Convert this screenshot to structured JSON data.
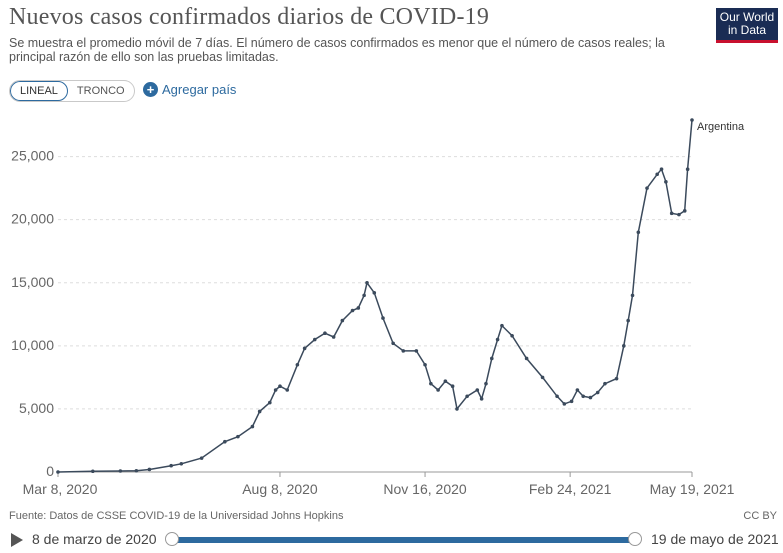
{
  "header": {
    "title": "Nuevos casos confirmados diarios de COVID-19",
    "subtitle": "Se muestra el promedio móvil de 7 días. El número de casos confirmados es menor que el número de casos reales; la principal razón de ello son las pruebas limitadas.",
    "logo_line1": "Our World",
    "logo_line2": "in Data"
  },
  "controls": {
    "scale_options": [
      "LINEAL",
      "TRONCO"
    ],
    "selected_scale": "LINEAL",
    "add_country_label": "Agregar país"
  },
  "footer": {
    "source": "Fuente: Datos de CSSE COVID-19 de la Universidad Johns Hopkins",
    "license": "CC BY"
  },
  "timeline": {
    "start_label": "8 de marzo de 2020",
    "end_label": "19 de mayo de 2021"
  },
  "colors": {
    "line": "#3b4a5c",
    "grid": "#dddddd",
    "accent": "#2d6a9f",
    "logo_bg": "#1a2c54",
    "logo_bar": "#c8102e"
  },
  "chart_data": {
    "type": "line",
    "series": [
      {
        "name": "Argentina",
        "points": [
          [
            "2020-03-08",
            0
          ],
          [
            "2020-04-01",
            60
          ],
          [
            "2020-04-20",
            80
          ],
          [
            "2020-05-01",
            100
          ],
          [
            "2020-05-10",
            200
          ],
          [
            "2020-05-25",
            500
          ],
          [
            "2020-06-01",
            650
          ],
          [
            "2020-06-15",
            1100
          ],
          [
            "2020-07-01",
            2400
          ],
          [
            "2020-07-10",
            2800
          ],
          [
            "2020-07-20",
            3600
          ],
          [
            "2020-07-25",
            4800
          ],
          [
            "2020-08-01",
            5500
          ],
          [
            "2020-08-05",
            6500
          ],
          [
            "2020-08-08",
            6800
          ],
          [
            "2020-08-13",
            6500
          ],
          [
            "2020-08-20",
            8500
          ],
          [
            "2020-08-25",
            9800
          ],
          [
            "2020-09-01",
            10500
          ],
          [
            "2020-09-08",
            11000
          ],
          [
            "2020-09-14",
            10700
          ],
          [
            "2020-09-20",
            12000
          ],
          [
            "2020-09-27",
            12800
          ],
          [
            "2020-10-01",
            13000
          ],
          [
            "2020-10-05",
            14000
          ],
          [
            "2020-10-07",
            15000
          ],
          [
            "2020-10-12",
            14200
          ],
          [
            "2020-10-18",
            12200
          ],
          [
            "2020-10-25",
            10200
          ],
          [
            "2020-11-01",
            9600
          ],
          [
            "2020-11-10",
            9600
          ],
          [
            "2020-11-16",
            8500
          ],
          [
            "2020-11-20",
            7000
          ],
          [
            "2020-11-25",
            6500
          ],
          [
            "2020-11-30",
            7200
          ],
          [
            "2020-12-05",
            6800
          ],
          [
            "2020-12-08",
            5000
          ],
          [
            "2020-12-15",
            6000
          ],
          [
            "2020-12-22",
            6500
          ],
          [
            "2020-12-25",
            5800
          ],
          [
            "2020-12-28",
            7000
          ],
          [
            "2021-01-01",
            9000
          ],
          [
            "2021-01-05",
            10500
          ],
          [
            "2021-01-08",
            11600
          ],
          [
            "2021-01-15",
            10800
          ],
          [
            "2021-01-25",
            9000
          ],
          [
            "2021-02-05",
            7500
          ],
          [
            "2021-02-15",
            6000
          ],
          [
            "2021-02-20",
            5400
          ],
          [
            "2021-02-25",
            5600
          ],
          [
            "2021-03-01",
            6500
          ],
          [
            "2021-03-05",
            6000
          ],
          [
            "2021-03-10",
            5900
          ],
          [
            "2021-03-15",
            6300
          ],
          [
            "2021-03-20",
            7000
          ],
          [
            "2021-03-28",
            7400
          ],
          [
            "2021-04-02",
            10000
          ],
          [
            "2021-04-05",
            12000
          ],
          [
            "2021-04-08",
            14000
          ],
          [
            "2021-04-12",
            19000
          ],
          [
            "2021-04-18",
            22500
          ],
          [
            "2021-04-25",
            23600
          ],
          [
            "2021-04-28",
            24000
          ],
          [
            "2021-05-01",
            23000
          ],
          [
            "2021-05-05",
            20500
          ],
          [
            "2021-05-10",
            20400
          ],
          [
            "2021-05-14",
            20700
          ],
          [
            "2021-05-16",
            24000
          ],
          [
            "2021-05-19",
            27900
          ]
        ]
      }
    ],
    "x_tick_labels": [
      "Mar 8, 2020",
      "Aug 8, 2020",
      "Nov 16, 2020",
      "Feb 24, 2021",
      "May 19, 2021"
    ],
    "x_tick_dates": [
      "2020-03-08",
      "2020-08-08",
      "2020-11-16",
      "2021-02-24",
      "2021-05-19"
    ],
    "y_tick_labels": [
      "0",
      "5,000",
      "10,000",
      "15,000",
      "20,000",
      "25,000"
    ],
    "y_ticks": [
      0,
      5000,
      10000,
      15000,
      20000,
      25000
    ],
    "ylim": [
      0,
      27900
    ],
    "xlim": [
      "2020-03-08",
      "2021-05-19"
    ],
    "grid": true,
    "legend": "end-of-line label"
  }
}
